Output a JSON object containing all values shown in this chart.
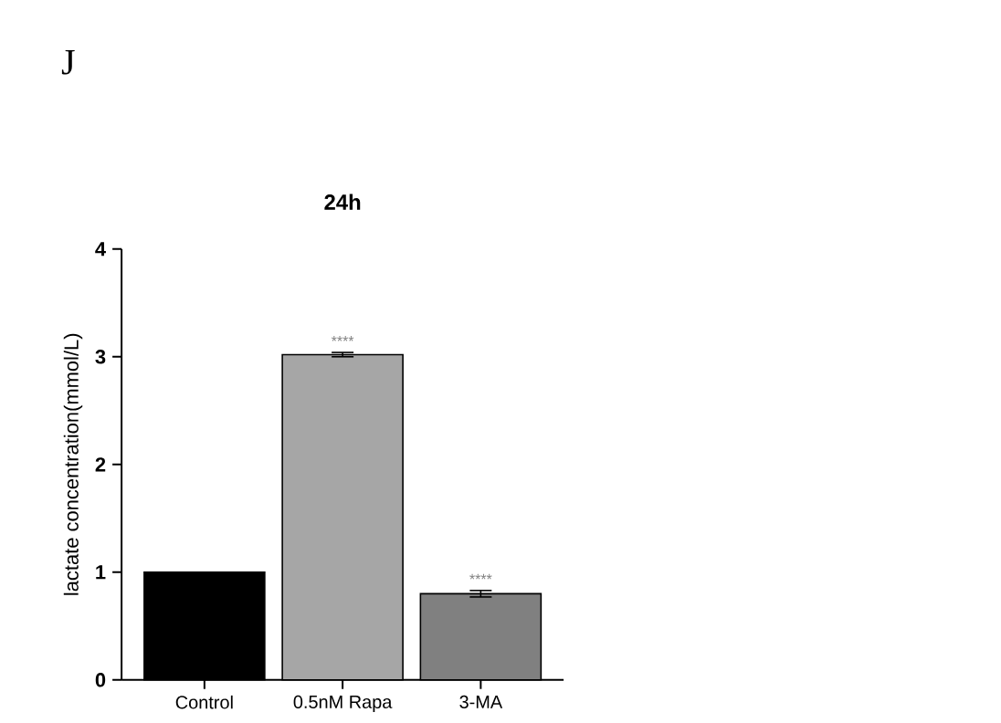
{
  "chart_data": {
    "type": "bar",
    "title": "24h",
    "ylabel": "lactate concentration(mmol/L)",
    "categories": [
      "Control",
      "0.5nM Rapa",
      "3-MA"
    ],
    "values": [
      1.0,
      3.02,
      0.8
    ],
    "errors": [
      null,
      0.02,
      0.03
    ],
    "value_labels": [
      null,
      "****",
      "****"
    ],
    "colors": [
      "#000000",
      "#a6a6a6",
      "#808080"
    ],
    "ylim": [
      0,
      4
    ],
    "yticks": [
      0,
      1,
      2,
      3,
      4
    ],
    "annotations": [
      "J"
    ]
  }
}
